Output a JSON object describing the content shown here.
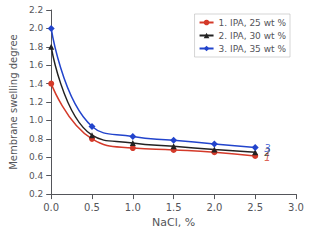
{
  "chart_data": {
    "type": "line",
    "xlabel": "NaCl, %",
    "ylabel": "Membrane swelling degree",
    "x": [
      0.0,
      0.5,
      1.0,
      1.5,
      2.0,
      2.5
    ],
    "series": [
      {
        "name": "1. IPA, 25 wt %",
        "color": "#d43a2a",
        "marker": "circle",
        "values": [
          1.4,
          0.8,
          0.7,
          0.68,
          0.655,
          0.615
        ]
      },
      {
        "name": "2. IPA, 30 wt %",
        "color": "#222222",
        "marker": "triangle",
        "values": [
          1.8,
          0.84,
          0.755,
          0.72,
          0.685,
          0.655
        ]
      },
      {
        "name": "3. IPA, 35 wt %",
        "color": "#2244cc",
        "marker": "diamond",
        "values": [
          2.0,
          0.935,
          0.825,
          0.785,
          0.745,
          0.705
        ]
      }
    ],
    "annotations": [
      {
        "text": "1",
        "x": 2.55,
        "y": 0.6,
        "color": "#d43a2a"
      },
      {
        "text": "2",
        "x": 2.55,
        "y": 0.648,
        "color": "#222222"
      },
      {
        "text": "3",
        "x": 2.55,
        "y": 0.7,
        "color": "#2244cc"
      }
    ],
    "xlim": [
      0.0,
      3.0
    ],
    "ylim": [
      0.2,
      2.2
    ],
    "xticks": [
      {
        "value": 0,
        "label": "0.0"
      },
      0.5,
      {
        "value": 1,
        "label": "1.0"
      },
      1.5,
      {
        "value": 2,
        "label": "2.0"
      },
      2.5,
      {
        "value": 3,
        "label": "3.0"
      }
    ],
    "yticks": [
      0.2,
      0.4,
      0.6,
      0.8,
      {
        "value": 1,
        "label": "1.0"
      },
      1.2,
      1.4,
      1.6,
      1.8,
      {
        "value": 2,
        "label": "2.0"
      },
      2.2
    ],
    "grid": false,
    "legend": "upper right"
  }
}
